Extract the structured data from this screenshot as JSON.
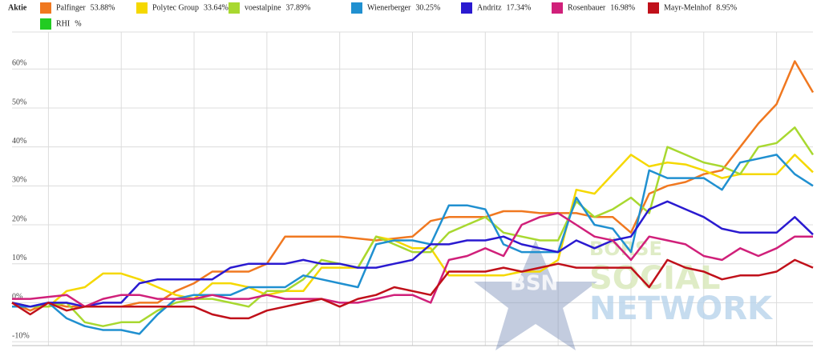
{
  "chart_data": {
    "type": "line",
    "legend_title": "Aktie",
    "watermark": [
      "BSN",
      "BÖRSE",
      "SOCIAL",
      "NETWORK"
    ],
    "categories": [
      null,
      null,
      null,
      null,
      null,
      null,
      null,
      null,
      null,
      null,
      null,
      null,
      null,
      null,
      null,
      null,
      null,
      null,
      null,
      null,
      null,
      null,
      null,
      null,
      null,
      null,
      null,
      null,
      null,
      null,
      null,
      null,
      null,
      null,
      null,
      null,
      null,
      null,
      null,
      null,
      null,
      null,
      null,
      null,
      null
    ],
    "ylim": [
      -11,
      69.5
    ],
    "yticks": [
      {
        "value": -10,
        "label": "-10%"
      },
      {
        "value": 0,
        "label": "0%"
      },
      {
        "value": 10,
        "label": "10%"
      },
      {
        "value": 20,
        "label": "20%"
      },
      {
        "value": 30,
        "label": "30%"
      },
      {
        "value": 40,
        "label": "40%"
      },
      {
        "value": 50,
        "label": "50%"
      },
      {
        "value": 60,
        "label": "60%"
      }
    ],
    "grid": true,
    "series": [
      {
        "name": "Palfinger",
        "legend_value": "53.88%",
        "color": "#f07820",
        "values": [
          0,
          -2,
          0,
          -1,
          -1,
          -1,
          -1,
          0,
          0,
          3,
          5,
          8,
          8,
          8,
          10,
          17,
          17,
          17,
          17,
          16.5,
          16,
          16.5,
          17,
          21,
          22,
          22,
          22,
          23.5,
          23.5,
          23,
          23,
          23,
          22,
          22,
          18,
          28,
          30,
          31,
          33,
          34,
          40,
          46,
          51,
          62,
          54
        ]
      },
      {
        "name": "Polytec Group",
        "legend_value": "33.64%",
        "color": "#f5d800",
        "values": [
          0,
          -1,
          -1,
          3,
          4,
          7.5,
          7.5,
          6,
          4,
          2,
          1,
          5,
          5,
          4,
          2,
          3,
          3,
          9,
          9,
          9,
          17,
          16,
          14,
          14,
          7,
          7,
          7,
          7,
          8,
          8,
          11,
          29,
          28,
          33,
          38,
          35,
          36,
          35.5,
          34,
          32,
          33,
          33,
          33,
          38,
          33.5
        ]
      },
      {
        "name": "voestalpine",
        "legend_value": "37.89%",
        "color": "#a8d830",
        "values": [
          0,
          -1,
          -1,
          0,
          -5,
          -6,
          -5,
          -5,
          -2,
          0,
          1,
          1,
          0,
          -1,
          3,
          3,
          6,
          11,
          10,
          9,
          17,
          15,
          13,
          13,
          18,
          20,
          22,
          18,
          17,
          16,
          16,
          26,
          22,
          24,
          27,
          23,
          40,
          38,
          36,
          35,
          33,
          40,
          41,
          45,
          38
        ]
      },
      {
        "name": "Wienerberger",
        "legend_value": "30.25%",
        "color": "#2090d0",
        "values": [
          -1,
          -1,
          0,
          -4,
          -6,
          -7,
          -7,
          -8,
          -3,
          1,
          2,
          2,
          2,
          4,
          4,
          4,
          7,
          6,
          5,
          4,
          15,
          16,
          16,
          15,
          25,
          25,
          24,
          15,
          13,
          13,
          13,
          27,
          20,
          19,
          13,
          34,
          32,
          32,
          32,
          29,
          36,
          37,
          38,
          33,
          30
        ]
      },
      {
        "name": "Andritz",
        "legend_value": "17.34%",
        "color": "#2a1ad0",
        "values": [
          0,
          -1,
          0,
          0,
          -1,
          0,
          0,
          5,
          6,
          6,
          6,
          6,
          9,
          10,
          10,
          10,
          11,
          10,
          10,
          9,
          9,
          10,
          11,
          15,
          15,
          16,
          16,
          17,
          15,
          14,
          13,
          16,
          14,
          16,
          17,
          24,
          26,
          24,
          22,
          19,
          18,
          18,
          18,
          22,
          17.5
        ]
      },
      {
        "name": "Rosenbauer",
        "legend_value": "16.98%",
        "color": "#d0207a",
        "values": [
          1,
          1,
          1.5,
          2,
          -1,
          1,
          2,
          2,
          1,
          1,
          1,
          2,
          1,
          1,
          2,
          1,
          1,
          1,
          0,
          0,
          1,
          2,
          2,
          0,
          11,
          12,
          14,
          12,
          20,
          22,
          23,
          20,
          17,
          16,
          11,
          17,
          16,
          15,
          12,
          11,
          14,
          12,
          14,
          17,
          17
        ]
      },
      {
        "name": "Mayr-Melnhof",
        "legend_value": "8.95%",
        "color": "#c0101a",
        "values": [
          0,
          -3,
          0,
          -2,
          -1,
          -1,
          -1,
          -1,
          -1,
          -1,
          -1,
          -3,
          -4,
          -4,
          -2,
          -1,
          0,
          1,
          -1,
          1,
          2,
          4,
          3,
          2,
          8,
          8,
          8,
          9,
          8,
          9,
          10,
          9,
          9,
          9,
          9,
          4,
          11,
          9,
          8,
          6,
          7,
          7,
          8,
          11,
          9
        ]
      },
      {
        "name": "RHI",
        "legend_value": "%",
        "color": "#22cc22",
        "values": [
          null,
          null,
          null,
          null,
          null,
          null,
          null,
          null,
          null,
          null,
          null,
          null,
          null,
          null,
          null,
          null,
          null,
          null,
          null,
          null,
          null,
          null,
          null,
          null,
          null,
          null,
          null,
          null,
          null,
          null,
          null,
          null,
          null,
          null,
          null,
          null,
          null,
          null,
          null,
          null,
          null,
          null,
          null,
          null,
          null
        ]
      }
    ]
  }
}
